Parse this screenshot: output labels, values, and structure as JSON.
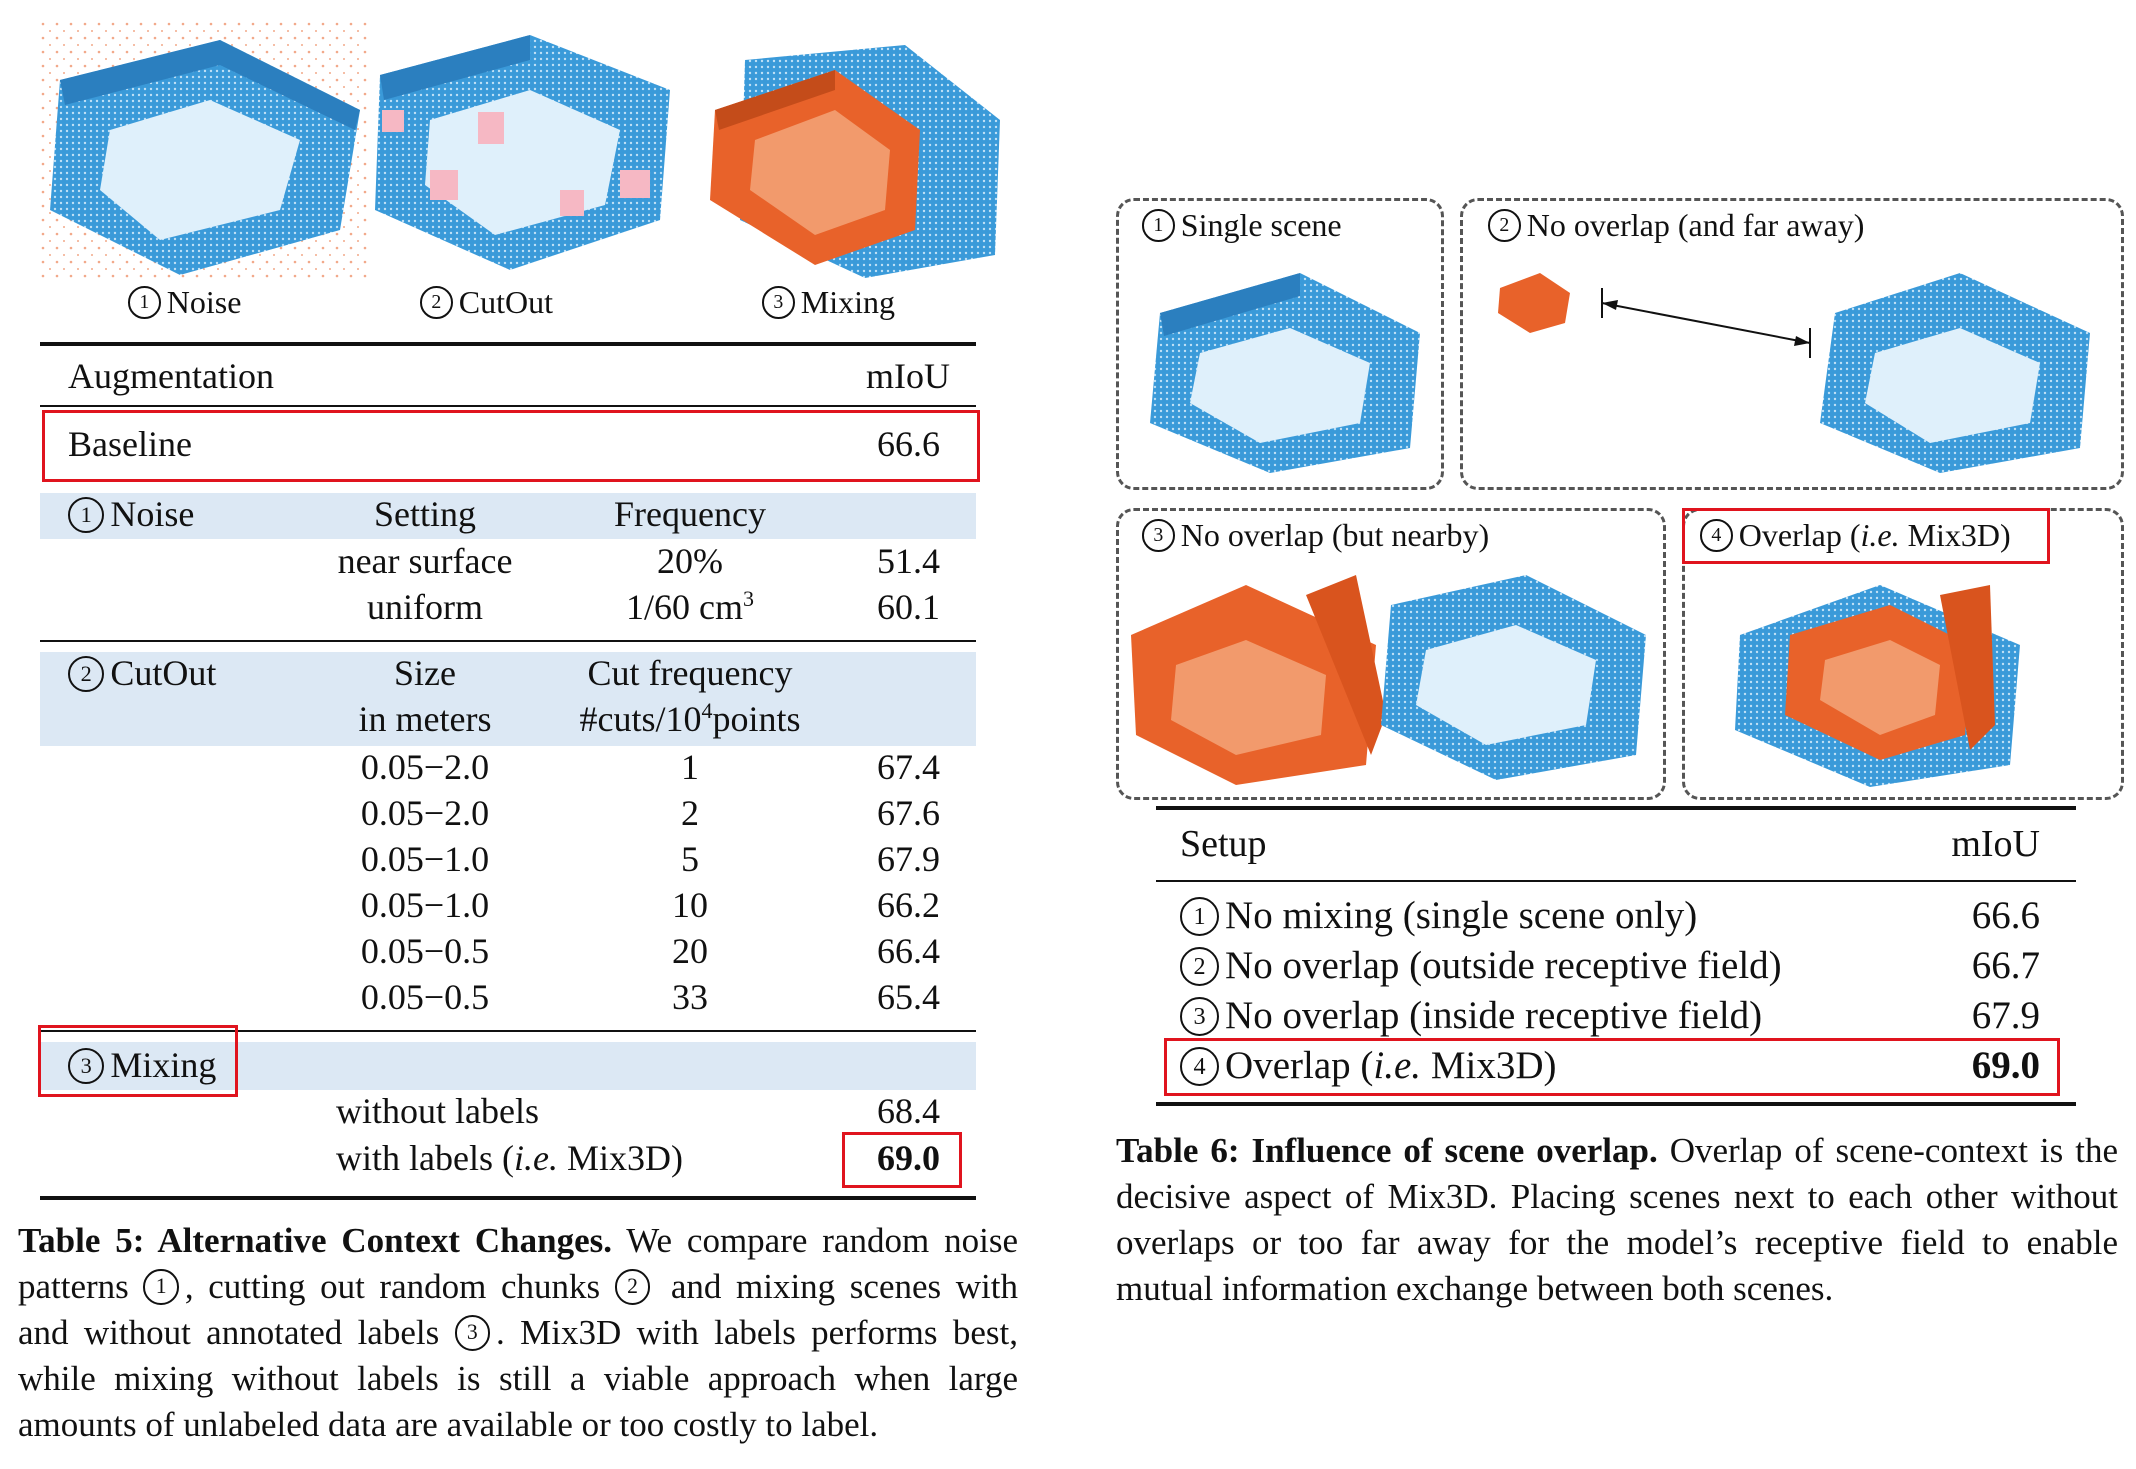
{
  "left_figure": {
    "images": [
      {
        "num": "1",
        "label": "Noise"
      },
      {
        "num": "2",
        "label": "CutOut"
      },
      {
        "num": "3",
        "label": "Mixing"
      }
    ]
  },
  "table5": {
    "header": {
      "col1": "Augmentation",
      "col2": "mIoU"
    },
    "baseline": {
      "label": "Baseline",
      "value": "66.6"
    },
    "noise": {
      "num": "1",
      "title": "Noise",
      "h_setting": "Setting",
      "h_freq": "Frequency",
      "rows": [
        {
          "setting": "near surface",
          "freq": "20%",
          "miou": "51.4"
        },
        {
          "setting": "uniform",
          "freq": "1/60 cm",
          "freq_sup": "3",
          "miou": "60.1"
        }
      ]
    },
    "cutout": {
      "num": "2",
      "title": "CutOut",
      "h_size1": "Size",
      "h_size2": "in meters",
      "h_freq1": "Cut frequency",
      "h_freq2a": "#cuts/10",
      "h_freq2sup": "4",
      "h_freq2b": "points",
      "rows": [
        {
          "size": "0.05−2.0",
          "freq": "1",
          "miou": "67.4"
        },
        {
          "size": "0.05−2.0",
          "freq": "2",
          "miou": "67.6"
        },
        {
          "size": "0.05−1.0",
          "freq": "5",
          "miou": "67.9"
        },
        {
          "size": "0.05−1.0",
          "freq": "10",
          "miou": "66.2"
        },
        {
          "size": "0.05−0.5",
          "freq": "20",
          "miou": "66.4"
        },
        {
          "size": "0.05−0.5",
          "freq": "33",
          "miou": "65.4"
        }
      ]
    },
    "mixing": {
      "num": "3",
      "title": "Mixing",
      "rows": [
        {
          "label": "without labels",
          "miou": "68.4"
        },
        {
          "label_a": "with labels (",
          "label_i": "i.e.",
          "label_b": " Mix3D)",
          "miou": "69.0"
        }
      ]
    },
    "caption": {
      "bold": "Table 5: Alternative Context Changes.",
      "p1": " We compare random noise patterns ",
      "n1": "1",
      "p2": ", cutting out random chunks ",
      "n2": "2",
      "p3": " and mixing scenes with and without annotated labels ",
      "n3": "3",
      "p4": ". Mix3D with labels performs best, while mixing without labels is still a viable approach when large amounts of unlabeled data are available or too costly to label."
    }
  },
  "right_figure": {
    "panels": [
      {
        "num": "1",
        "label": "Single scene"
      },
      {
        "num": "2",
        "label": "No overlap (and far away)"
      },
      {
        "num": "3",
        "label": "No overlap (but nearby)"
      },
      {
        "num": "4",
        "label_a": "Overlap (",
        "label_i": "i.e.",
        "label_b": " Mix3D)"
      }
    ]
  },
  "table6": {
    "header": {
      "col1": "Setup",
      "col2": "mIoU"
    },
    "rows": [
      {
        "num": "1",
        "label": "No mixing (single scene only)",
        "miou": "66.6"
      },
      {
        "num": "2",
        "label": "No overlap (outside receptive field)",
        "miou": "66.7"
      },
      {
        "num": "3",
        "label": "No overlap (inside receptive field)",
        "miou": "67.9"
      },
      {
        "num": "4",
        "label_a": "Overlap (",
        "label_i": "i.e.",
        "label_b": " Mix3D)",
        "miou": "69.0"
      }
    ],
    "caption": {
      "bold": "Table 6: Influence of scene overlap.",
      "text": " Overlap of scene-context is the decisive aspect of Mix3D. Placing scenes next to each other without overlaps or too far away for the model’s receptive field to enable mutual information exchange between both scenes."
    }
  },
  "colors": {
    "scene_blue": "#3a9ad9",
    "mix_orange": "#e8622a",
    "highlight_red": "#e0141e",
    "band_blue": "#dce8f4"
  }
}
